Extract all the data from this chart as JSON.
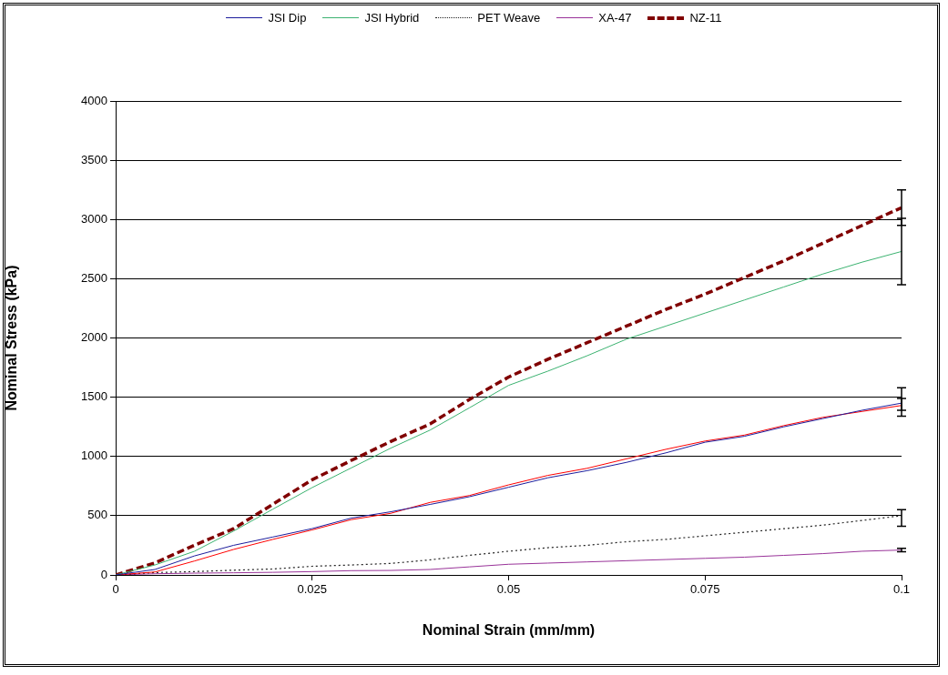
{
  "chart_data": {
    "type": "line",
    "xlabel": "Nominal Strain (mm/mm)",
    "ylabel": "Nominal Stress (kPa)",
    "x": [
      0,
      0.005,
      0.01,
      0.015,
      0.02,
      0.025,
      0.03,
      0.035,
      0.04,
      0.045,
      0.05,
      0.055,
      0.06,
      0.065,
      0.07,
      0.075,
      0.08,
      0.085,
      0.09,
      0.095,
      0.1
    ],
    "xlim": [
      0,
      0.1
    ],
    "xticks": [
      0,
      0.025,
      0.05,
      0.075,
      0.1
    ],
    "ylim": [
      0,
      4000
    ],
    "yticks": [
      0,
      500,
      1000,
      1500,
      2000,
      2500,
      3000,
      3500,
      4000
    ],
    "grid": "y",
    "legend": "top",
    "marker": "none",
    "series": [
      {
        "name": "JSI Dip",
        "color": "#1c1c9c",
        "line_style": "solid",
        "values": [
          0,
          46,
          160,
          250,
          320,
          391,
          480,
          533,
          595,
          660,
          740,
          820,
          880,
          950,
          1030,
          1120,
          1170,
          1250,
          1320,
          1390,
          1450
        ],
        "errors": [
          null,
          null,
          null,
          null,
          null,
          null,
          null,
          null,
          null,
          null,
          null,
          null,
          null,
          null,
          null,
          null,
          null,
          null,
          null,
          null,
          [
            1340,
            1580
          ]
        ]
      },
      {
        "name": "JSI Hybrid",
        "color": "#3cb371",
        "line_style": "solid",
        "values": [
          0,
          84,
          199,
          370,
          555,
          737,
          904,
          1070,
          1222,
          1410,
          1600,
          1720,
          1850,
          1990,
          2100,
          2210,
          2320,
          2430,
          2540,
          2640,
          2730
        ],
        "errors": [
          null,
          null,
          null,
          null,
          null,
          null,
          null,
          null,
          null,
          null,
          null,
          null,
          null,
          null,
          null,
          null,
          null,
          null,
          null,
          null,
          [
            2450,
            3010
          ]
        ]
      },
      {
        "color": "#ff0000",
        "line_style": "solid",
        "values": [
          0,
          25,
          117,
          215,
          300,
          380,
          467,
          520,
          612,
          670,
          760,
          840,
          900,
          980,
          1060,
          1130,
          1180,
          1260,
          1330,
          1380,
          1430
        ],
        "errors": [
          null,
          null,
          null,
          null,
          null,
          null,
          null,
          null,
          null,
          null,
          null,
          null,
          null,
          null,
          null,
          null,
          null,
          null,
          null,
          null,
          [
            1390,
            1490
          ]
        ]
      },
      {
        "name": "PET Weave",
        "color": "#222222",
        "line_style": "dotted",
        "values": [
          0,
          20,
          28,
          40,
          50,
          73,
          84,
          97,
          127,
          165,
          200,
          230,
          250,
          280,
          300,
          330,
          360,
          390,
          420,
          460,
          500
        ],
        "errors": [
          null,
          null,
          null,
          null,
          null,
          null,
          null,
          null,
          null,
          null,
          null,
          null,
          null,
          null,
          null,
          null,
          null,
          null,
          null,
          null,
          [
            410,
            550
          ]
        ]
      },
      {
        "name": "XA-47",
        "color": "#993399",
        "line_style": "solid",
        "values": [
          0,
          10,
          15,
          18,
          22,
          28,
          36,
          38,
          46,
          68,
          90,
          100,
          110,
          120,
          130,
          140,
          150,
          165,
          180,
          200,
          210
        ],
        "errors": [
          null,
          null,
          null,
          null,
          null,
          null,
          null,
          null,
          null,
          null,
          null,
          null,
          null,
          null,
          null,
          null,
          null,
          null,
          null,
          null,
          [
            195,
            225
          ]
        ]
      },
      {
        "name": "NZ-11",
        "color": "#800000",
        "line_style": "dashed",
        "values": [
          0,
          102,
          250,
          390,
          596,
          803,
          967,
          1126,
          1274,
          1480,
          1670,
          1820,
          1960,
          2100,
          2240,
          2370,
          2510,
          2650,
          2800,
          2950,
          3100
        ],
        "errors": [
          null,
          null,
          null,
          null,
          null,
          null,
          null,
          null,
          null,
          null,
          null,
          null,
          null,
          null,
          null,
          null,
          null,
          null,
          null,
          null,
          [
            2950,
            3250
          ]
        ]
      }
    ]
  }
}
